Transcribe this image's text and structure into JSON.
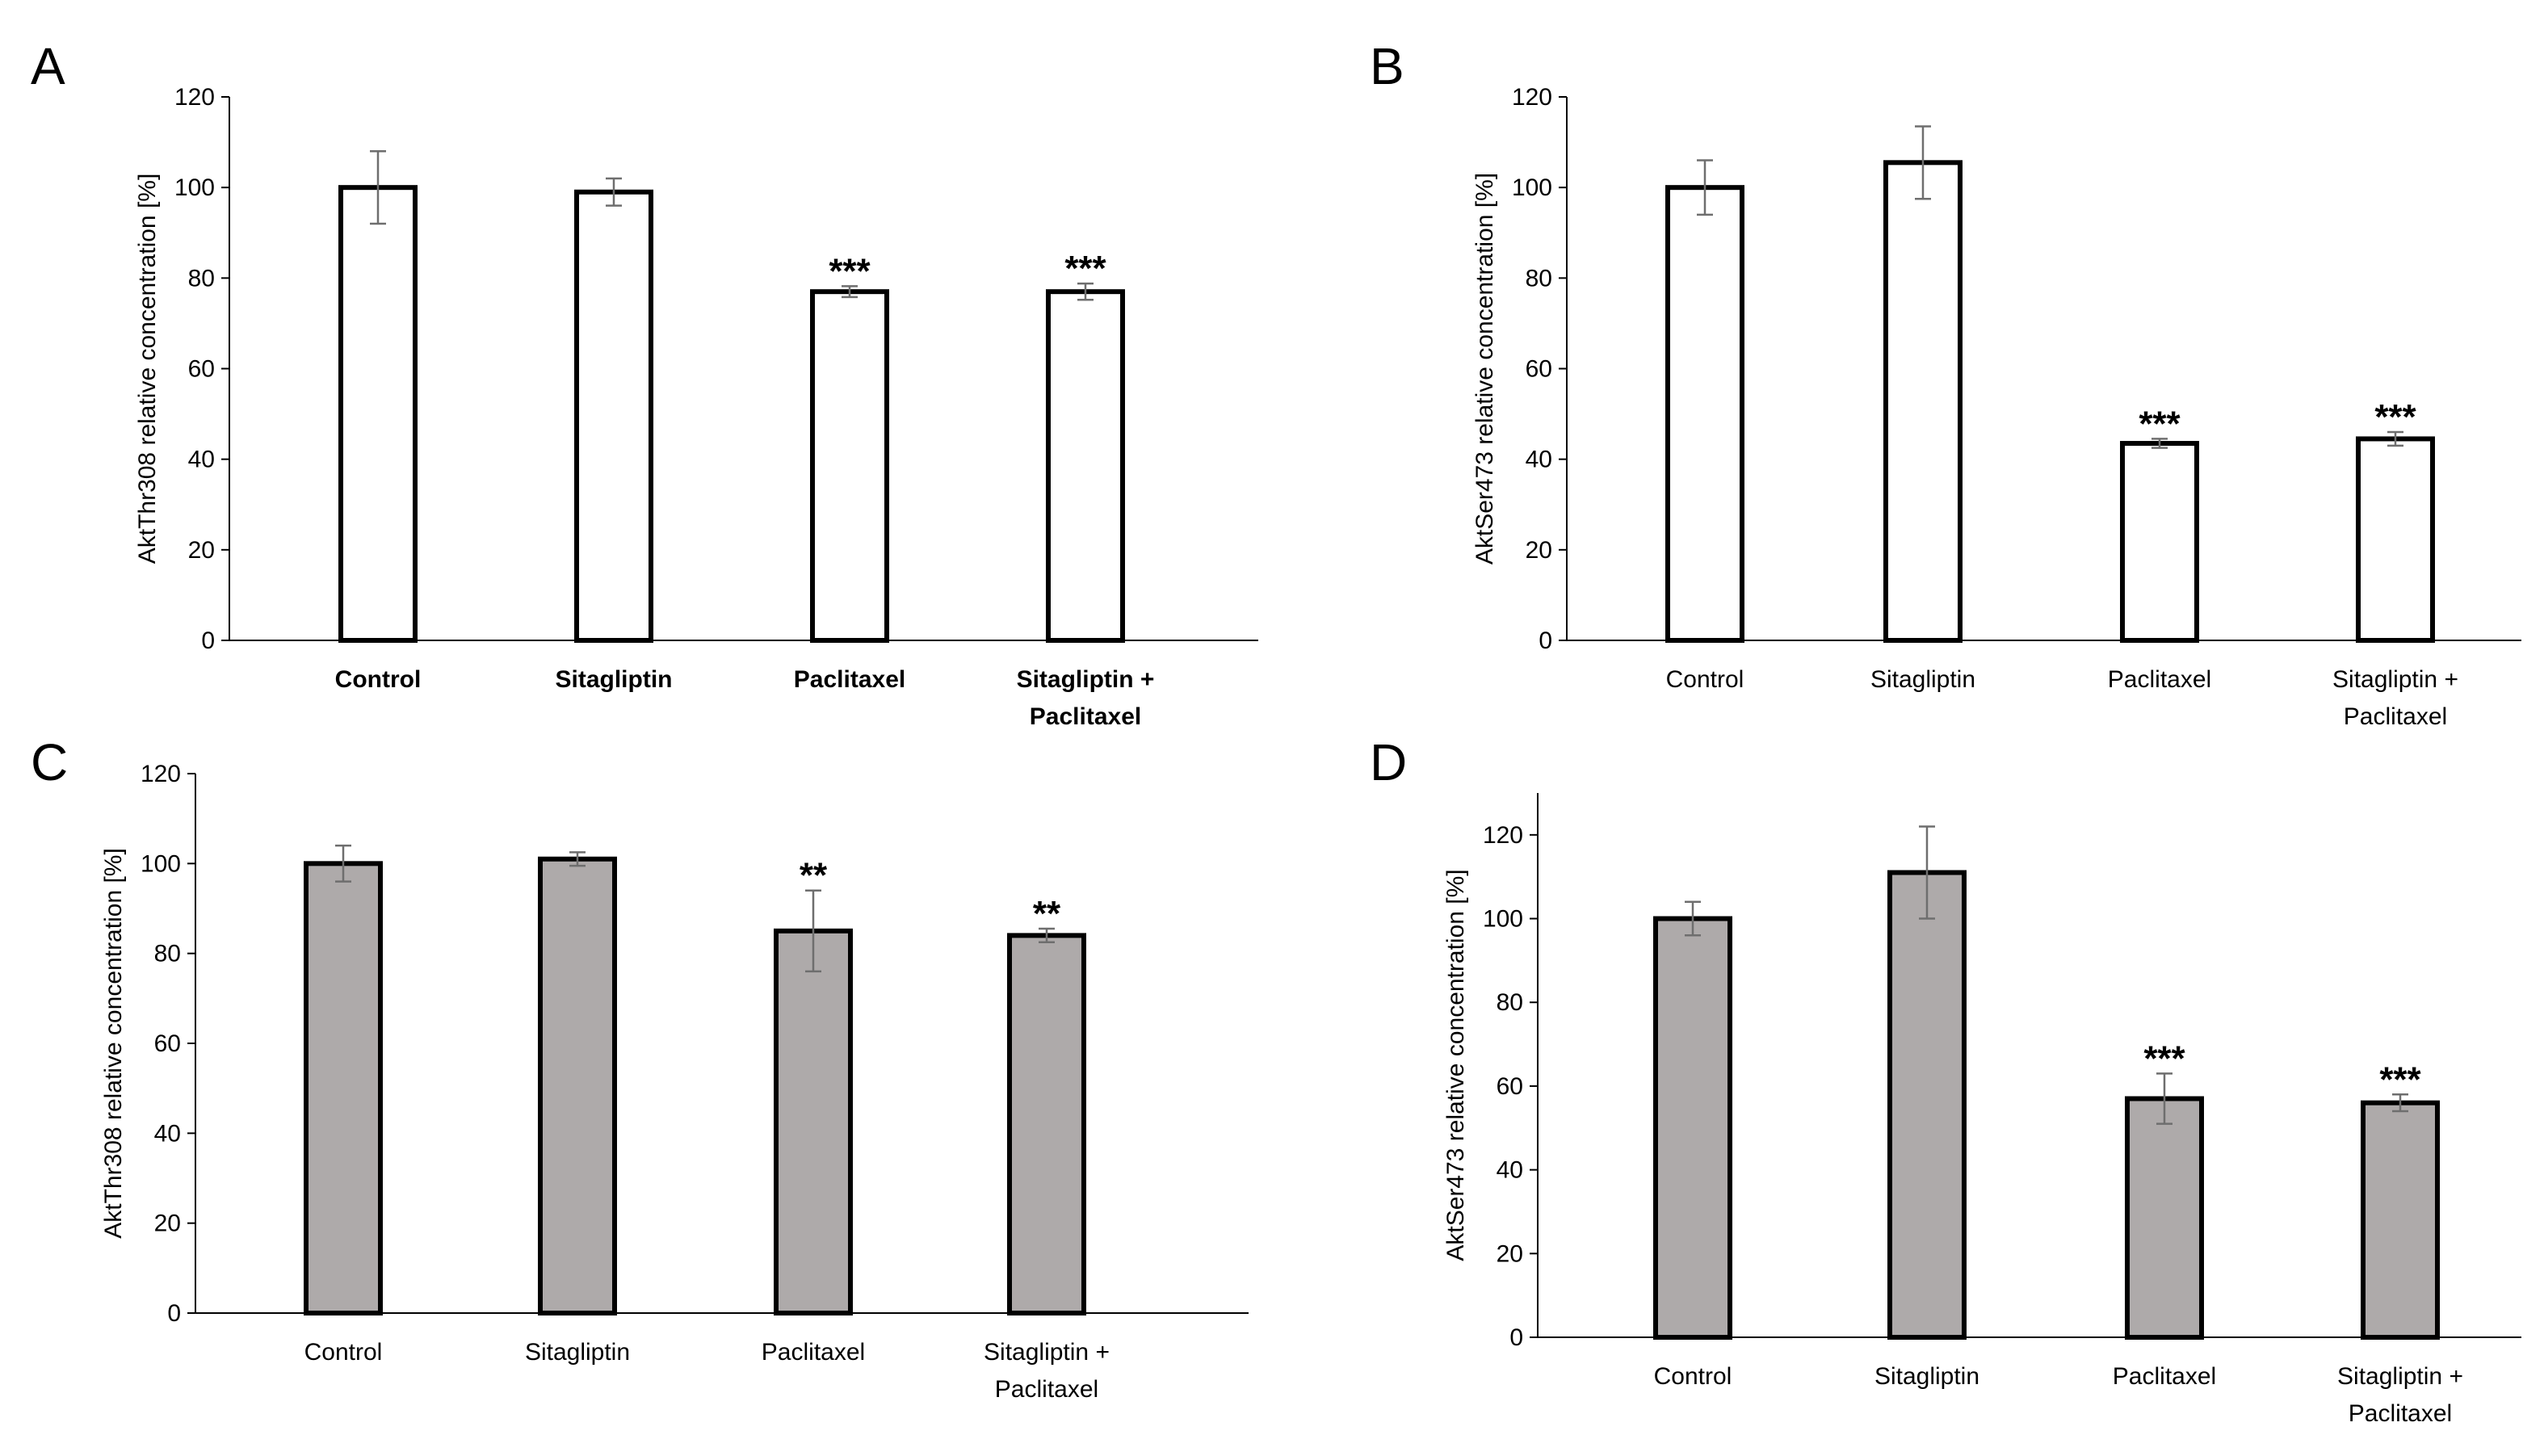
{
  "colors": {
    "white_bar": "#ffffff",
    "grey_bar": "#aeaaaa",
    "axis": "#000000",
    "error_bar": "#6e6e6e"
  },
  "chart_data": [
    {
      "panel": "A",
      "type": "bar",
      "categories": [
        [
          "Control"
        ],
        [
          "Sitagliptin"
        ],
        [
          "Paclitaxel"
        ],
        [
          "Sitagliptin +",
          "Paclitaxel"
        ]
      ],
      "values": [
        100,
        99,
        77,
        77
      ],
      "errors": [
        8,
        3,
        1.2,
        1.8
      ],
      "significance": [
        "",
        "",
        "***",
        "***"
      ],
      "ylabel": "AktThr308 relative concentration [%]",
      "ylim": [
        0,
        120
      ],
      "yticks": [
        0,
        20,
        40,
        60,
        80,
        100,
        120
      ],
      "bar_color": "#ffffff",
      "bold_categories": true
    },
    {
      "panel": "B",
      "type": "bar",
      "categories": [
        [
          "Control"
        ],
        [
          "Sitagliptin"
        ],
        [
          "Paclitaxel"
        ],
        [
          "Sitagliptin +",
          "Paclitaxel"
        ]
      ],
      "values": [
        100,
        105.5,
        43.5,
        44.5
      ],
      "errors": [
        6,
        8,
        1,
        1.5
      ],
      "significance": [
        "",
        "",
        "***",
        "***"
      ],
      "ylabel": "AktSer473 relative concentration [%]",
      "ylim": [
        0,
        120
      ],
      "yticks": [
        0,
        20,
        40,
        60,
        80,
        100,
        120
      ],
      "bar_color": "#ffffff",
      "bold_categories": false
    },
    {
      "panel": "C",
      "type": "bar",
      "categories": [
        [
          "Control"
        ],
        [
          "Sitagliptin"
        ],
        [
          "Paclitaxel"
        ],
        [
          "Sitagliptin +",
          "Paclitaxel"
        ]
      ],
      "values": [
        100,
        101,
        85,
        84
      ],
      "errors": [
        4,
        1.5,
        9,
        1.5
      ],
      "significance": [
        "",
        "",
        "**",
        "**"
      ],
      "ylabel": "AktThr308 relative concentration [%]",
      "ylim": [
        0,
        120
      ],
      "yticks": [
        0,
        20,
        40,
        60,
        80,
        100,
        120
      ],
      "bar_color": "#aeaaaa",
      "bold_categories": false
    },
    {
      "panel": "D",
      "type": "bar",
      "categories": [
        [
          "Control"
        ],
        [
          "Sitagliptin"
        ],
        [
          "Paclitaxel"
        ],
        [
          "Sitagliptin +",
          "Paclitaxel"
        ]
      ],
      "values": [
        100,
        111,
        57,
        56
      ],
      "errors": [
        4,
        11,
        6,
        2
      ],
      "significance": [
        "",
        "",
        "***",
        "***"
      ],
      "ylabel": "AktSer473 relative concentration [%]",
      "ylim": [
        0,
        130
      ],
      "yticks": [
        0,
        20,
        40,
        60,
        80,
        100,
        120
      ],
      "bar_color": "#aeaaaa",
      "bold_categories": false
    }
  ]
}
